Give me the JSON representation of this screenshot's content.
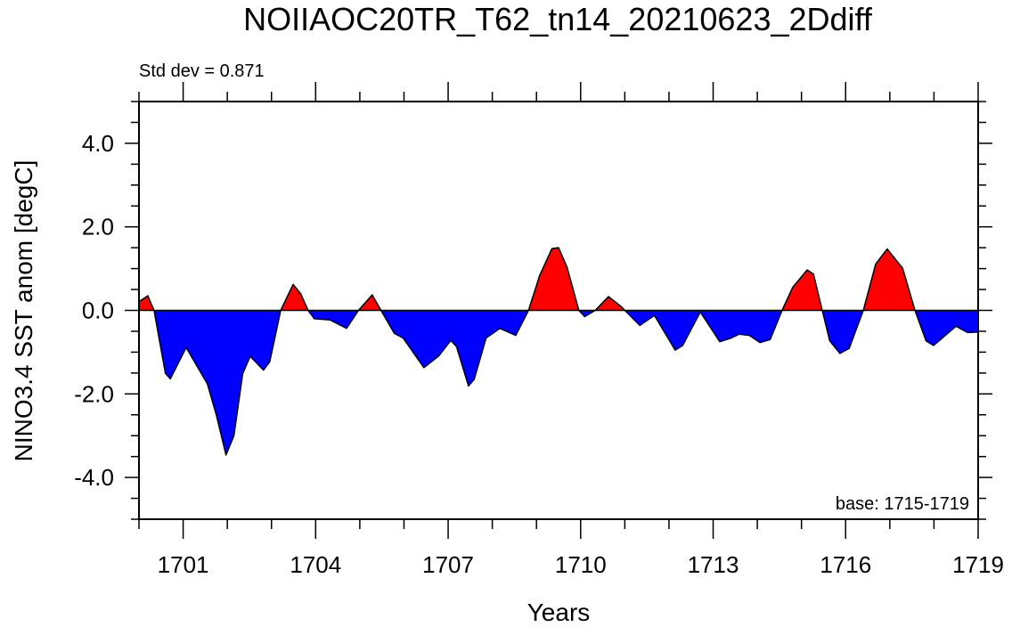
{
  "chart_data": {
    "type": "area",
    "title": "NOIIAOC20TR_T62_tn14_20210623_2Ddiff",
    "left_annotation": "Std dev = 0.871",
    "right_annotation": "base: 1715-1719",
    "xlabel": "Years",
    "ylabel": "NINO3.4 SST anom [degC]",
    "xlim": [
      1700,
      1719
    ],
    "ylim": [
      -5,
      5
    ],
    "x_ticks": [
      1701,
      1704,
      1707,
      1710,
      1713,
      1716,
      1719
    ],
    "x_tick_labels": [
      "1701",
      "1704",
      "1707",
      "1710",
      "1713",
      "1716",
      "1719"
    ],
    "y_ticks": [
      -4,
      -2,
      0,
      2,
      4
    ],
    "y_tick_labels": [
      "-4.0",
      "-2.0",
      "0.0",
      "2.0",
      "4.0"
    ],
    "positive_color": "#ff0000",
    "negative_color": "#0000ff",
    "series": [
      {
        "name": "NINO3.4 SST anom",
        "x": [
          1700.0,
          1700.2,
          1700.34,
          1700.6,
          1700.71,
          1701.07,
          1701.55,
          1701.75,
          1701.97,
          1702.15,
          1702.35,
          1702.52,
          1702.82,
          1702.96,
          1703.21,
          1703.49,
          1703.66,
          1703.83,
          1703.97,
          1704.33,
          1704.7,
          1704.97,
          1705.28,
          1705.48,
          1705.78,
          1705.98,
          1706.45,
          1706.79,
          1707.06,
          1707.19,
          1707.46,
          1707.59,
          1707.86,
          1708.17,
          1708.53,
          1708.82,
          1709.07,
          1709.35,
          1709.5,
          1709.69,
          1709.96,
          1710.09,
          1710.33,
          1710.63,
          1710.93,
          1711.0,
          1711.34,
          1711.67,
          1712.14,
          1712.31,
          1712.71,
          1713.15,
          1713.39,
          1713.59,
          1713.82,
          1714.06,
          1714.29,
          1714.56,
          1714.8,
          1715.13,
          1715.27,
          1715.47,
          1715.64,
          1715.87,
          1716.08,
          1716.4,
          1716.68,
          1716.94,
          1717.29,
          1717.57,
          1717.82,
          1717.99,
          1718.5,
          1718.76,
          1719.0
        ],
        "y": [
          0.21,
          0.35,
          0.0,
          -1.51,
          -1.64,
          -0.89,
          -1.76,
          -2.5,
          -3.46,
          -3.0,
          -1.51,
          -1.1,
          -1.43,
          -1.23,
          0.0,
          0.62,
          0.4,
          0.0,
          -0.2,
          -0.23,
          -0.43,
          0.0,
          0.37,
          0.0,
          -0.55,
          -0.66,
          -1.37,
          -1.09,
          -0.72,
          -0.87,
          -1.81,
          -1.65,
          -0.66,
          -0.43,
          -0.6,
          0.0,
          0.83,
          1.48,
          1.5,
          1.04,
          0.0,
          -0.15,
          0.0,
          0.33,
          0.08,
          0.0,
          -0.36,
          -0.12,
          -0.95,
          -0.84,
          -0.04,
          -0.75,
          -0.67,
          -0.57,
          -0.6,
          -0.77,
          -0.7,
          0.0,
          0.55,
          0.97,
          0.87,
          0.0,
          -0.73,
          -1.03,
          -0.91,
          0.0,
          1.11,
          1.47,
          1.01,
          0.0,
          -0.73,
          -0.84,
          -0.38,
          -0.53,
          -0.52
        ]
      }
    ]
  }
}
